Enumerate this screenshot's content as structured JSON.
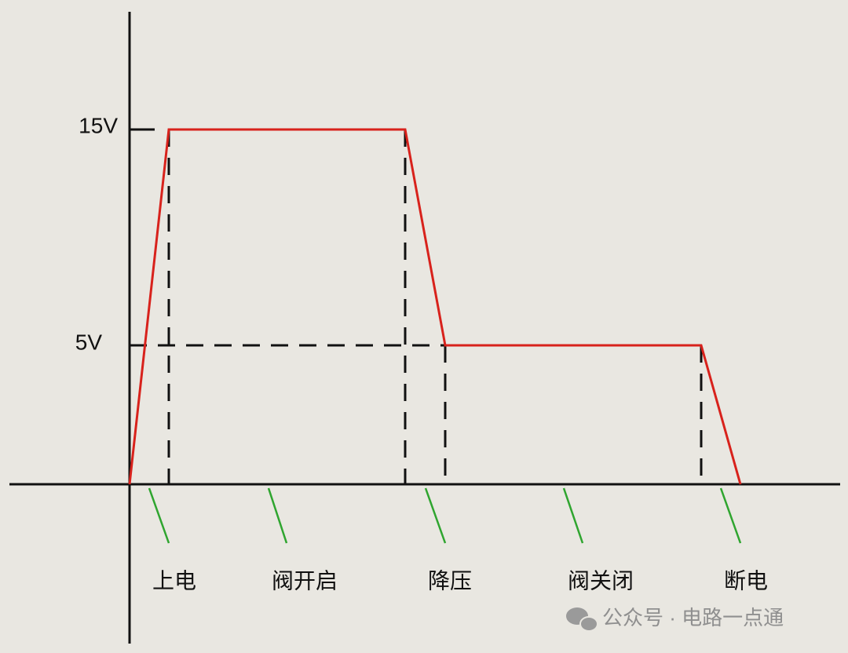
{
  "axis_labels": [
    "15V",
    "5V"
  ],
  "phases": [
    "上电",
    "阀开启",
    "降压",
    "阀关闭",
    "断电"
  ],
  "watermark": "公众号 · 电路一点通"
}
